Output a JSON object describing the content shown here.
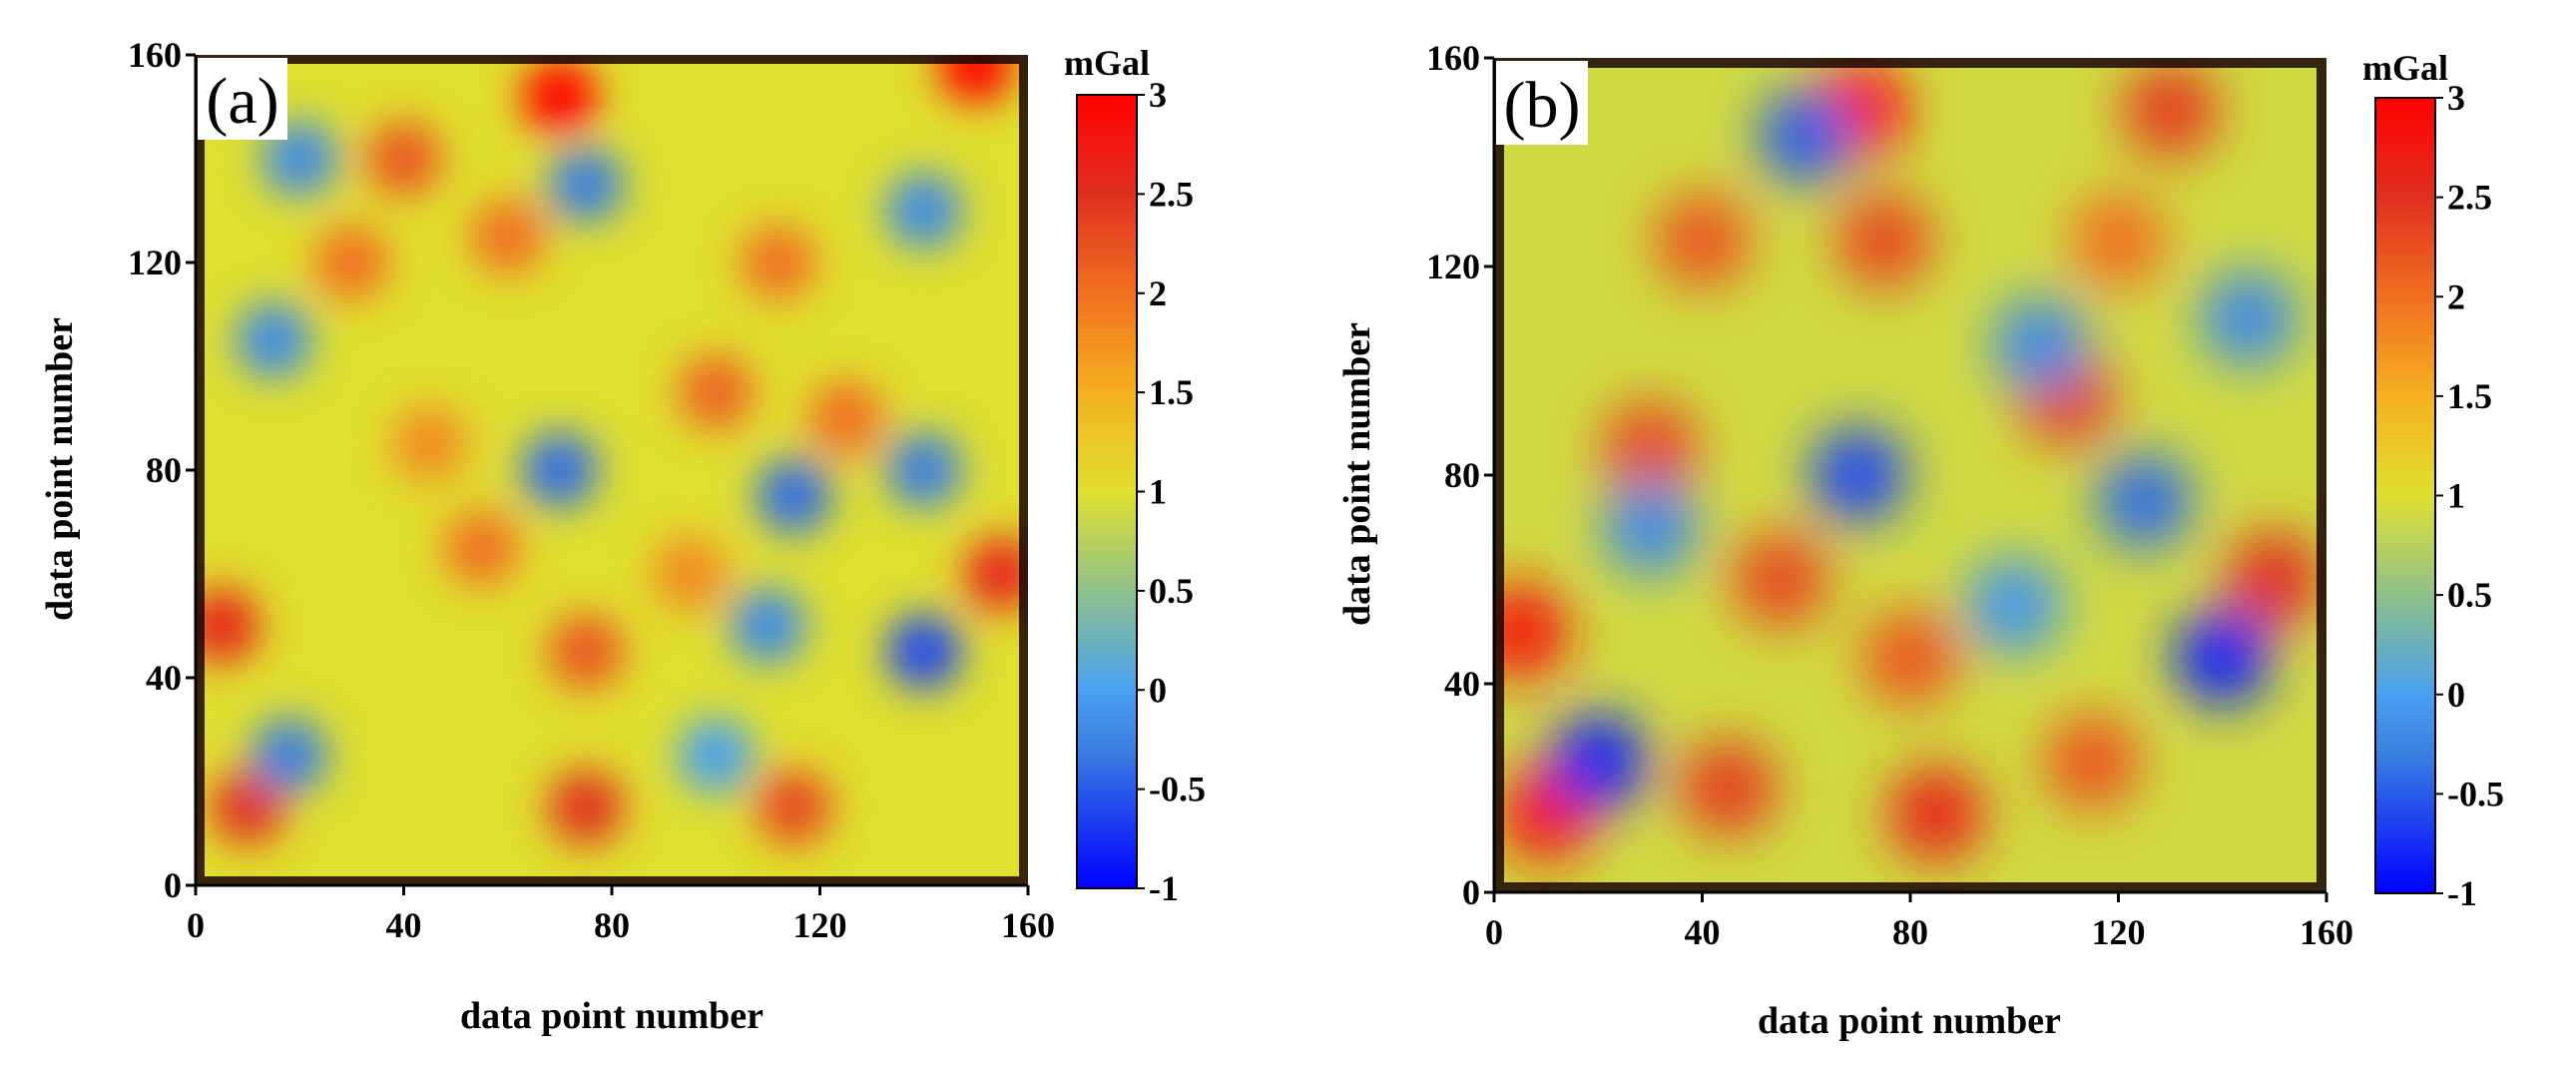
{
  "colors": {
    "colormap": [
      "#0000ff",
      "#3a7fe0",
      "#4aa0f0",
      "#8fc08a",
      "#e0e030",
      "#f5b020",
      "#f07020",
      "#e03020",
      "#ff0000"
    ],
    "colormap_stops": [
      -1,
      -0.3,
      0,
      0.5,
      1,
      1.5,
      2,
      2.5,
      3
    ],
    "frame_dark": "#1a0505",
    "axis": "#000000"
  },
  "chart_data": [
    {
      "type": "heatmap",
      "panel_label": "(a)",
      "xlabel": "data point number",
      "ylabel": "data point number",
      "xlim": [
        0,
        160
      ],
      "ylim": [
        0,
        160
      ],
      "x_ticks": [
        "0",
        "40",
        "80",
        "120",
        "160"
      ],
      "y_ticks": [
        "0",
        "40",
        "80",
        "120",
        "160"
      ],
      "colorbar": {
        "unit": "mGal",
        "range": [
          -1,
          3
        ],
        "ticks": [
          "-1",
          "-0.5",
          "0",
          "0.5",
          "1",
          "1.5",
          "2",
          "2.5",
          "3"
        ]
      },
      "field": {
        "background_mGal": 1.0,
        "features": [
          {
            "x": 70,
            "y": 152,
            "value": 3.0
          },
          {
            "x": 150,
            "y": 158,
            "value": 3.0
          },
          {
            "x": 40,
            "y": 140,
            "value": 2.2
          },
          {
            "x": 30,
            "y": 120,
            "value": 2.0
          },
          {
            "x": 60,
            "y": 125,
            "value": 2.0
          },
          {
            "x": 112,
            "y": 120,
            "value": 2.0
          },
          {
            "x": 100,
            "y": 95,
            "value": 2.1
          },
          {
            "x": 125,
            "y": 90,
            "value": 2.0
          },
          {
            "x": 45,
            "y": 85,
            "value": 1.8
          },
          {
            "x": 55,
            "y": 65,
            "value": 2.0
          },
          {
            "x": 75,
            "y": 45,
            "value": 2.2
          },
          {
            "x": 5,
            "y": 50,
            "value": 2.6
          },
          {
            "x": 155,
            "y": 60,
            "value": 2.6
          },
          {
            "x": 10,
            "y": 15,
            "value": 2.5
          },
          {
            "x": 75,
            "y": 15,
            "value": 2.5
          },
          {
            "x": 115,
            "y": 15,
            "value": 2.3
          },
          {
            "x": 95,
            "y": 60,
            "value": 1.8
          },
          {
            "x": 20,
            "y": 140,
            "value": -0.2
          },
          {
            "x": 75,
            "y": 135,
            "value": -0.3
          },
          {
            "x": 140,
            "y": 130,
            "value": -0.2
          },
          {
            "x": 15,
            "y": 105,
            "value": -0.2
          },
          {
            "x": 70,
            "y": 80,
            "value": -0.4
          },
          {
            "x": 115,
            "y": 75,
            "value": -0.4
          },
          {
            "x": 140,
            "y": 80,
            "value": -0.3
          },
          {
            "x": 140,
            "y": 45,
            "value": -0.6
          },
          {
            "x": 18,
            "y": 25,
            "value": -0.3
          },
          {
            "x": 110,
            "y": 50,
            "value": -0.2
          },
          {
            "x": 100,
            "y": 25,
            "value": 0.0
          }
        ]
      }
    },
    {
      "type": "heatmap",
      "panel_label": "(b)",
      "xlabel": "data point number",
      "ylabel": "data point number",
      "xlim": [
        0,
        160
      ],
      "ylim": [
        0,
        160
      ],
      "x_ticks": [
        "0",
        "40",
        "80",
        "120",
        "160"
      ],
      "y_ticks": [
        "0",
        "40",
        "80",
        "120",
        "160"
      ],
      "colorbar": {
        "unit": "mGal",
        "range": [
          -1,
          3
        ],
        "ticks": [
          "-1",
          "-0.5",
          "0",
          "0.5",
          "1",
          "1.5",
          "2",
          "2.5",
          "3"
        ]
      },
      "field": {
        "background_mGal": 0.9,
        "features": [
          {
            "x": 70,
            "y": 150,
            "value": 3.0
          },
          {
            "x": 130,
            "y": 150,
            "value": 2.4
          },
          {
            "x": 40,
            "y": 125,
            "value": 2.2
          },
          {
            "x": 75,
            "y": 125,
            "value": 2.3
          },
          {
            "x": 120,
            "y": 125,
            "value": 2.0
          },
          {
            "x": 30,
            "y": 85,
            "value": 2.3
          },
          {
            "x": 110,
            "y": 95,
            "value": 2.4
          },
          {
            "x": 55,
            "y": 60,
            "value": 2.3
          },
          {
            "x": 80,
            "y": 45,
            "value": 2.2
          },
          {
            "x": 5,
            "y": 50,
            "value": 2.8
          },
          {
            "x": 150,
            "y": 60,
            "value": 2.5
          },
          {
            "x": 10,
            "y": 15,
            "value": 2.8
          },
          {
            "x": 45,
            "y": 20,
            "value": 2.4
          },
          {
            "x": 85,
            "y": 15,
            "value": 2.6
          },
          {
            "x": 115,
            "y": 25,
            "value": 2.2
          },
          {
            "x": 60,
            "y": 145,
            "value": -0.5
          },
          {
            "x": 70,
            "y": 80,
            "value": -0.6
          },
          {
            "x": 30,
            "y": 70,
            "value": -0.2
          },
          {
            "x": 105,
            "y": 105,
            "value": -0.2
          },
          {
            "x": 140,
            "y": 45,
            "value": -0.8
          },
          {
            "x": 125,
            "y": 75,
            "value": -0.4
          },
          {
            "x": 20,
            "y": 25,
            "value": -0.8
          },
          {
            "x": 100,
            "y": 55,
            "value": -0.1
          },
          {
            "x": 145,
            "y": 110,
            "value": -0.2
          }
        ]
      }
    }
  ]
}
